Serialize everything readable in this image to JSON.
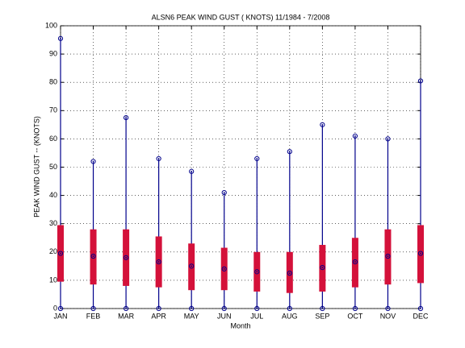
{
  "chart_data": {
    "type": "range-bar",
    "title": "ALSN6  PEAK WIND GUST ( KNOTS) 11/1984 - 7/2008",
    "x_label": "Month",
    "y_label": "PEAK WIND GUST -- (KNOTS)",
    "categories": [
      "JAN",
      "FEB",
      "MAR",
      "APR",
      "MAY",
      "JUN",
      "JUL",
      "AUG",
      "SEP",
      "OCT",
      "NOV",
      "DEC"
    ],
    "max": [
      95.5,
      52,
      67.5,
      53,
      48.5,
      41,
      53,
      55.5,
      65,
      61,
      60,
      80.5
    ],
    "upper": [
      29.5,
      28,
      28,
      25.5,
      23,
      21.5,
      20,
      20,
      22.5,
      25,
      28,
      29.5
    ],
    "lower": [
      9.5,
      8.5,
      8,
      7.5,
      6.5,
      6.5,
      6,
      5.5,
      6,
      7.5,
      8.5,
      9
    ],
    "mean": [
      19.5,
      18.5,
      18,
      16.5,
      15,
      14,
      13,
      12.5,
      14.5,
      16.5,
      18.5,
      19.5
    ],
    "min": [
      0,
      0,
      0,
      0,
      0,
      0,
      0,
      0,
      0,
      0,
      0,
      0
    ],
    "line_color": "#00008b",
    "bar_color": "#d4113a",
    "ylim": [
      0,
      100
    ],
    "yticks": [
      0,
      10,
      20,
      30,
      40,
      50,
      60,
      70,
      80,
      90,
      100
    ],
    "grid": true
  }
}
